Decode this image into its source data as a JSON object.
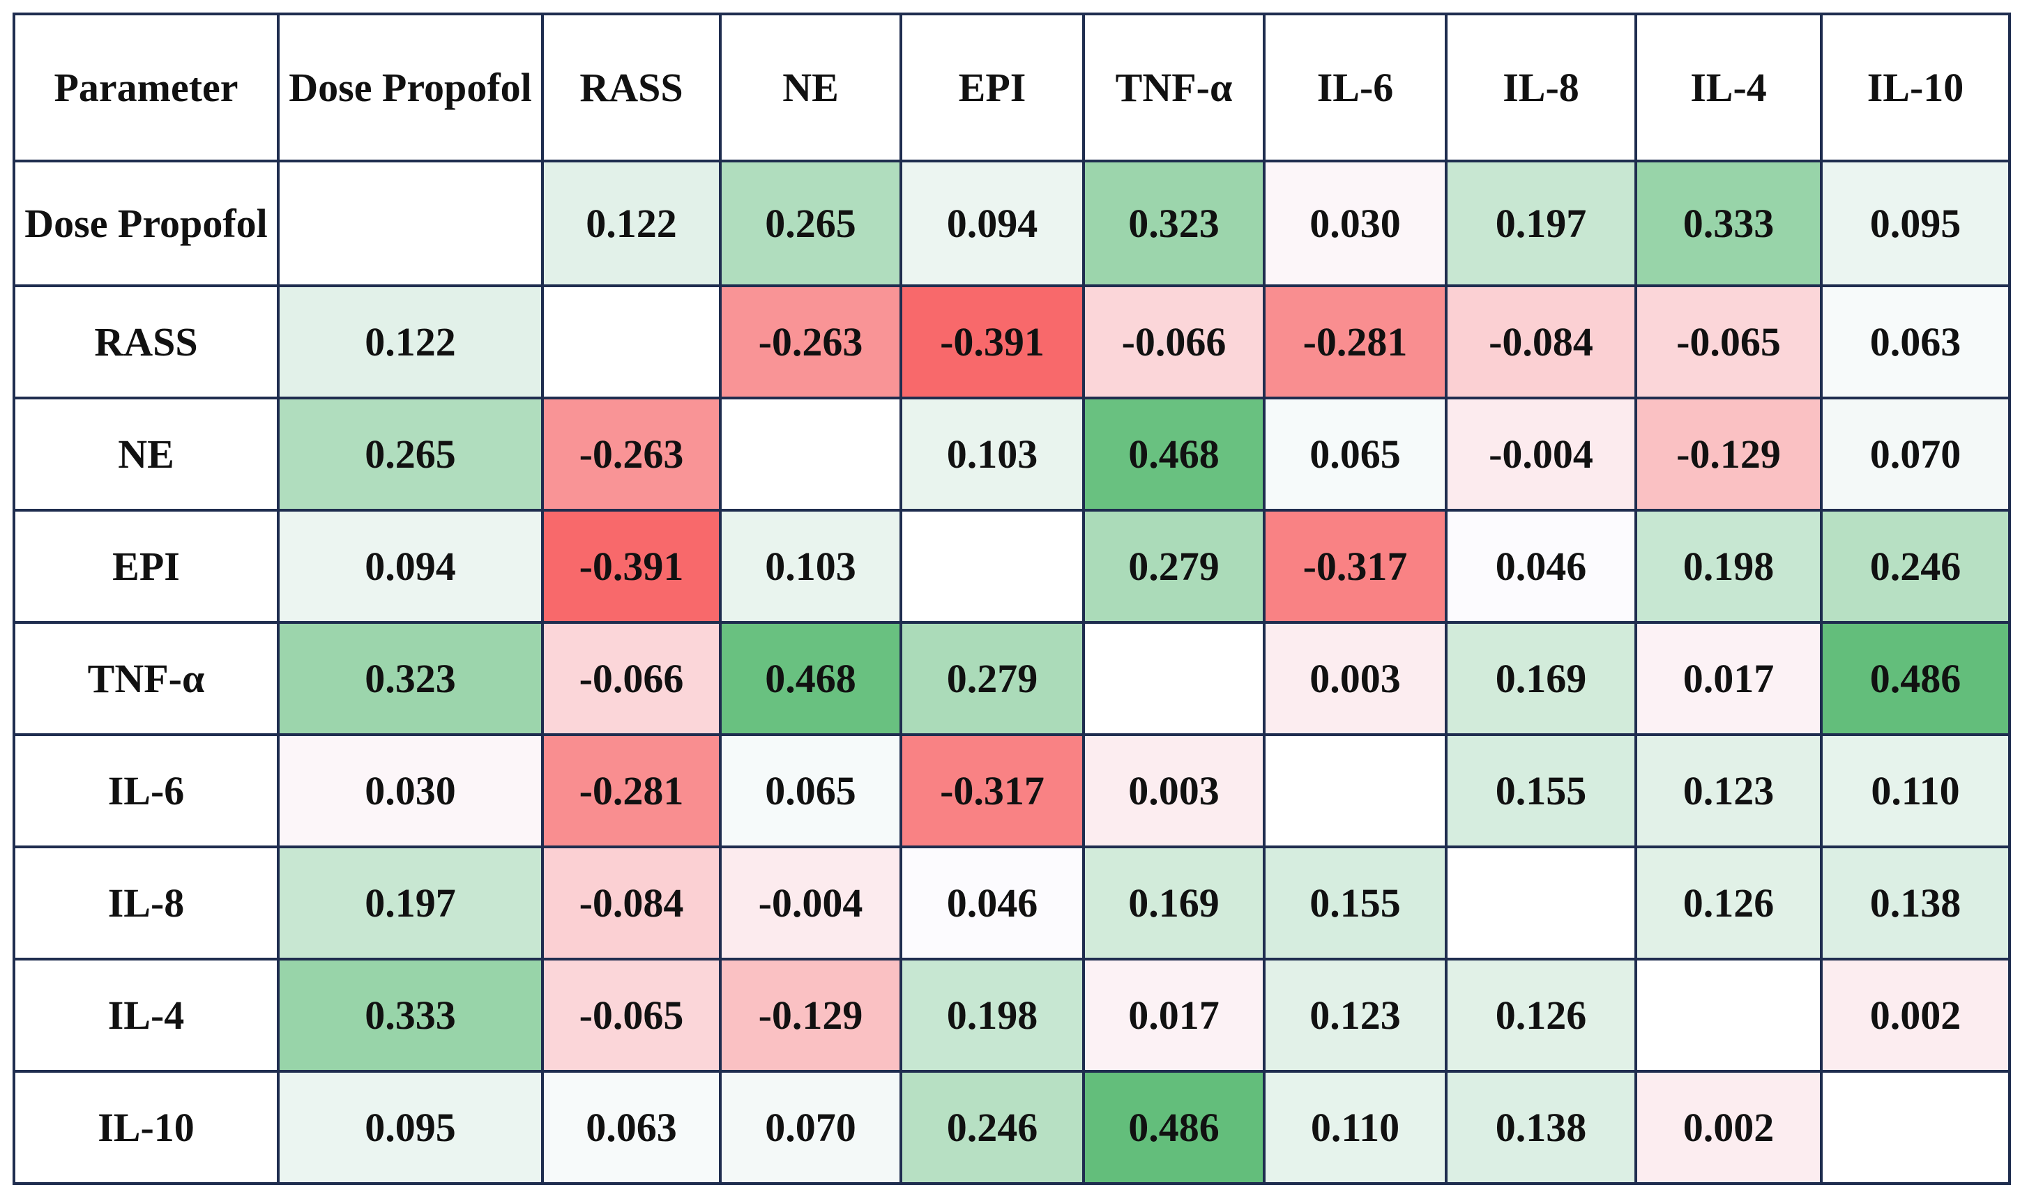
{
  "table": {
    "header": [
      "Parameter",
      "Dose Propofol",
      "RASS",
      "NE",
      "EPI",
      "TNF-α",
      "IL-6",
      "IL-8",
      "IL-4",
      "IL-10"
    ],
    "rows": [
      [
        "Dose Propofol",
        null,
        "0.122",
        "0.265",
        "0.094",
        "0.323",
        "0.030",
        "0.197",
        "0.333",
        "0.095"
      ],
      [
        "RASS",
        "0.122",
        null,
        "-0.263",
        "-0.391",
        "-0.066",
        "-0.281",
        "-0.084",
        "-0.065",
        "0.063"
      ],
      [
        "NE",
        "0.265",
        "-0.263",
        null,
        "0.103",
        "0.468",
        "0.065",
        "-0.004",
        "-0.129",
        "0.070"
      ],
      [
        "EPI",
        "0.094",
        "-0.391",
        "0.103",
        null,
        "0.279",
        "-0.317",
        "0.046",
        "0.198",
        "0.246"
      ],
      [
        "TNF-α",
        "0.323",
        "-0.066",
        "0.468",
        "0.279",
        null,
        "0.003",
        "0.169",
        "0.017",
        "0.486"
      ],
      [
        "IL-6",
        "0.030",
        "-0.281",
        "0.065",
        "-0.317",
        "0.003",
        null,
        "0.155",
        "0.123",
        "0.110"
      ],
      [
        "IL-8",
        "0.197",
        "-0.084",
        "-0.004",
        "0.046",
        "0.169",
        "0.155",
        null,
        "0.126",
        "0.138"
      ],
      [
        "IL-4",
        "0.333",
        "-0.065",
        "-0.129",
        "0.198",
        "0.017",
        "0.123",
        "0.126",
        null,
        "0.002"
      ],
      [
        "IL-10",
        "0.095",
        "0.063",
        "0.070",
        "0.246",
        "0.486",
        "0.110",
        "0.138",
        "0.002",
        null
      ]
    ]
  }
}
